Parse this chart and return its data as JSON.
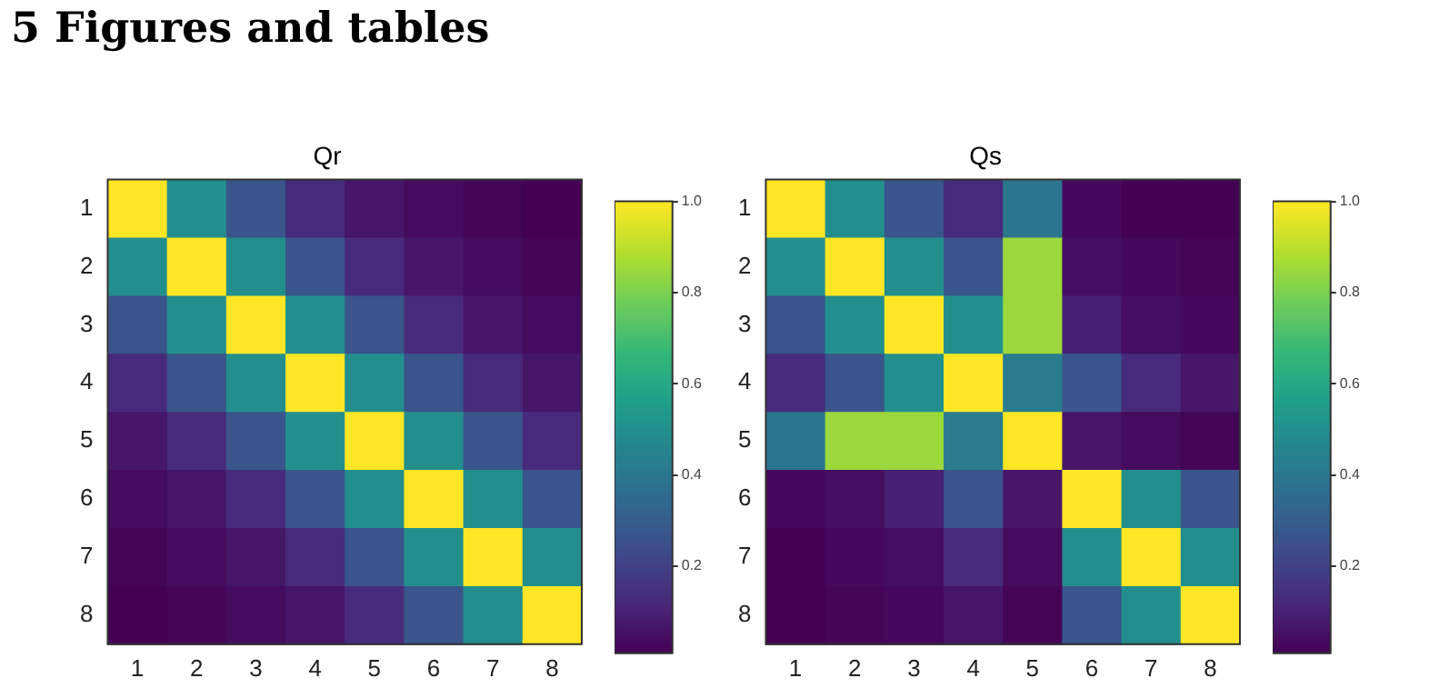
{
  "chart_data": [
    {
      "type": "heatmap",
      "title": "Qr",
      "annotations": [
        "5 Figures and tables"
      ],
      "categories": [
        "1",
        "2",
        "3",
        "4",
        "5",
        "6",
        "7",
        "8"
      ],
      "y_categories": [
        "1",
        "2",
        "3",
        "4",
        "5",
        "6",
        "7",
        "8"
      ],
      "cells": [
        [
          1,
          0.5,
          0.27,
          0.13,
          0.07,
          0.04,
          0.02,
          0.01
        ],
        [
          0.5,
          1,
          0.5,
          0.27,
          0.13,
          0.07,
          0.04,
          0.02
        ],
        [
          0.27,
          0.5,
          1,
          0.5,
          0.27,
          0.13,
          0.07,
          0.04
        ],
        [
          0.13,
          0.27,
          0.5,
          1,
          0.5,
          0.27,
          0.13,
          0.07
        ],
        [
          0.07,
          0.13,
          0.27,
          0.5,
          1,
          0.5,
          0.27,
          0.13
        ],
        [
          0.04,
          0.07,
          0.13,
          0.27,
          0.5,
          1,
          0.5,
          0.27
        ],
        [
          0.02,
          0.04,
          0.07,
          0.13,
          0.27,
          0.5,
          1,
          0.5
        ],
        [
          0.01,
          0.02,
          0.04,
          0.07,
          0.13,
          0.27,
          0.5,
          1
        ]
      ],
      "clim": [
        0.01,
        1
      ],
      "cticks": [
        0.2,
        0.4,
        0.6,
        0.8,
        {
          "value": 1,
          "label": "1.0"
        }
      ]
    },
    {
      "type": "heatmap",
      "title": "Qs",
      "categories": [
        "1",
        "2",
        "3",
        "4",
        "5",
        "6",
        "7",
        "8"
      ],
      "y_categories": [
        "1",
        "2",
        "3",
        "4",
        "5",
        "6",
        "7",
        "8"
      ],
      "cells": [
        [
          1,
          0.5,
          0.27,
          0.13,
          0.4,
          0.03,
          0.01,
          0.01
        ],
        [
          0.5,
          1,
          0.5,
          0.27,
          0.85,
          0.05,
          0.03,
          0.02
        ],
        [
          0.27,
          0.5,
          1,
          0.5,
          0.85,
          0.1,
          0.05,
          0.03
        ],
        [
          0.13,
          0.27,
          0.5,
          1,
          0.42,
          0.27,
          0.13,
          0.07
        ],
        [
          0.4,
          0.85,
          0.85,
          0.42,
          1,
          0.07,
          0.04,
          0.02
        ],
        [
          0.03,
          0.05,
          0.1,
          0.27,
          0.07,
          1,
          0.5,
          0.27
        ],
        [
          0.01,
          0.03,
          0.05,
          0.13,
          0.04,
          0.5,
          1,
          0.5
        ],
        [
          0.01,
          0.02,
          0.03,
          0.07,
          0.02,
          0.27,
          0.5,
          1
        ]
      ],
      "clim": [
        0.01,
        1
      ],
      "cticks": [
        0.2,
        0.4,
        0.6,
        0.8,
        {
          "value": 1,
          "label": "1.0"
        }
      ]
    }
  ]
}
